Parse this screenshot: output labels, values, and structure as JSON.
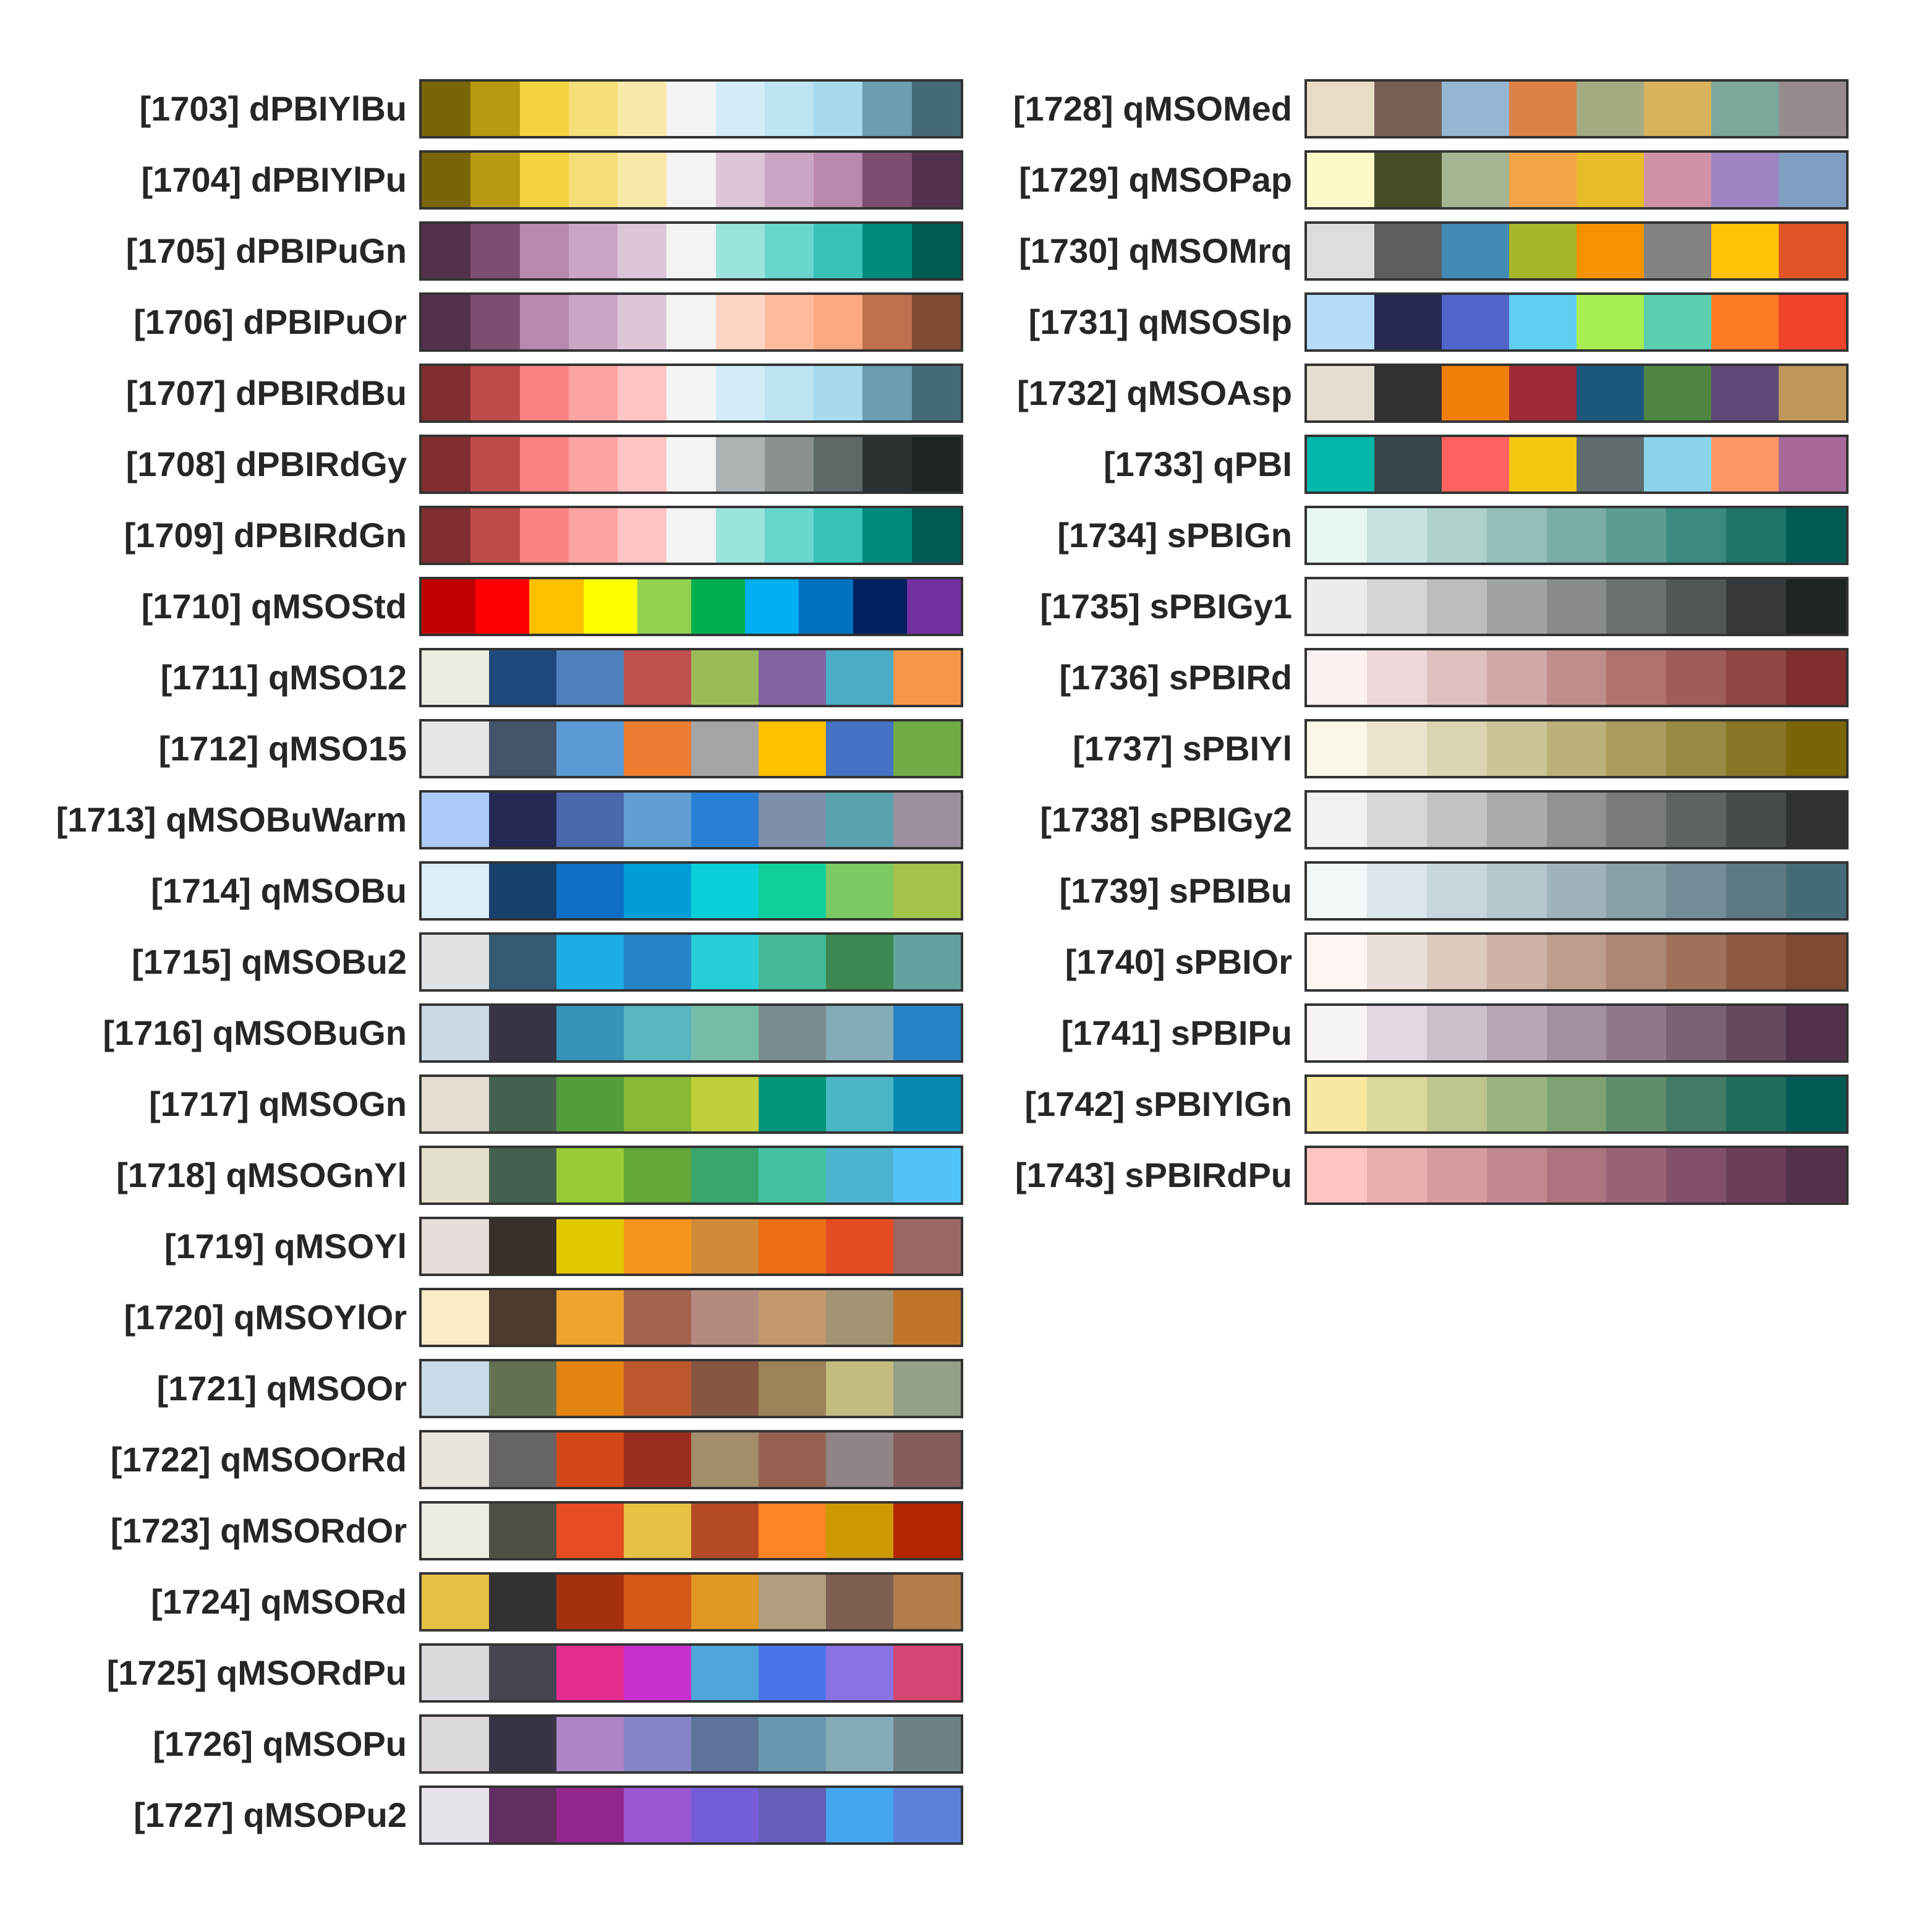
{
  "columns": [
    {
      "palettes": [
        {
          "label": "[1703] dPBIYlBu",
          "colors": [
            "#7a6508",
            "#b89a10",
            "#f3d340",
            "#f6df78",
            "#f9e9a8",
            "#f3f3f3",
            "#d2edf8",
            "#bde4f2",
            "#a6dbee",
            "#6a9eb0",
            "#456c76"
          ]
        },
        {
          "label": "[1704] dPBIYlPu",
          "colors": [
            "#7a6508",
            "#b89a10",
            "#f3d340",
            "#f6df78",
            "#f9e9a8",
            "#f3f3f3",
            "#dcc6d8",
            "#cba6c4",
            "#b888ad",
            "#7e4e70",
            "#53314a"
          ]
        },
        {
          "label": "[1705] dPBIPuGn",
          "colors": [
            "#53314a",
            "#7e4e70",
            "#b888ad",
            "#cba6c4",
            "#dcc6d8",
            "#f3f3f3",
            "#9be4dc",
            "#6ad5cd",
            "#38c3b8",
            "#018a7c",
            "#015b52"
          ]
        },
        {
          "label": "[1706] dPBIPuOr",
          "colors": [
            "#53314a",
            "#7e4e70",
            "#b888ad",
            "#cba6c4",
            "#dcc6d8",
            "#f3f3f3",
            "#fed5c4",
            "#fdbb9c",
            "#fca77f",
            "#bd714d",
            "#7e4a33"
          ]
        },
        {
          "label": "[1707] dPBIRdBu",
          "colors": [
            "#7f2d2f",
            "#c04b4b",
            "#fd8282",
            "#fea3a3",
            "#fec3c3",
            "#f3f3f3",
            "#d2edf8",
            "#bde4f2",
            "#a6dbee",
            "#6a9eb0",
            "#456c76"
          ]
        },
        {
          "label": "[1708] dPBIRdGy",
          "colors": [
            "#7f2d2f",
            "#c04b4b",
            "#fd8282",
            "#fea3a3",
            "#fec3c3",
            "#f3f3f3",
            "#aeb3b5",
            "#8b9191",
            "#5f6869",
            "#2c3233",
            "#1e2324"
          ]
        },
        {
          "label": "[1709] dPBIRdGn",
          "colors": [
            "#7f2d2f",
            "#c04b4b",
            "#fd8282",
            "#fea3a3",
            "#fec3c3",
            "#f3f3f3",
            "#9be4dc",
            "#6ad5cd",
            "#38c3b8",
            "#018a7c",
            "#015b52"
          ]
        },
        {
          "label": "[1710] qMSOStd",
          "colors": [
            "#c00000",
            "#ff0000",
            "#ffc000",
            "#ffff00",
            "#92d050",
            "#00b050",
            "#00b0f0",
            "#0070c0",
            "#002060",
            "#7030a0"
          ]
        },
        {
          "label": "[1711] qMSO12",
          "colors": [
            "#eeece1",
            "#1f497d",
            "#4f81bd",
            "#c0504d",
            "#9bbb59",
            "#8064a2",
            "#4bacc6",
            "#f79646"
          ]
        },
        {
          "label": "[1712] qMSO15",
          "colors": [
            "#e7e6e6",
            "#44546a",
            "#5b9bd5",
            "#ed7d31",
            "#a5a5a5",
            "#ffc000",
            "#4472c4",
            "#70ad47"
          ]
        },
        {
          "label": "[1713] qMSOBuWarm",
          "colors": [
            "#accbf9",
            "#242852",
            "#4a66ac",
            "#629dd1",
            "#297fd5",
            "#7f8fa9",
            "#5aa2ae",
            "#9d90a0"
          ]
        },
        {
          "label": "[1714] qMSOBu",
          "colors": [
            "#dbeff9",
            "#17406d",
            "#0f6fc6",
            "#009dd9",
            "#0bd0d9",
            "#10cf9b",
            "#7cca62",
            "#a5c249"
          ]
        },
        {
          "label": "[1715] qMSOBu2",
          "colors": [
            "#dfe3e5",
            "#335b74",
            "#1cade4",
            "#2683c6",
            "#27ced7",
            "#42ba97",
            "#3e8853",
            "#62a39f"
          ]
        },
        {
          "label": "[1716] qMSOBuGn",
          "colors": [
            "#ccd9e4",
            "#373545",
            "#3494ba",
            "#58b6c0",
            "#75bda7",
            "#7a8c8e",
            "#84acb6",
            "#2683c6"
          ]
        },
        {
          "label": "[1717] qMSOGn",
          "colors": [
            "#e3ded1",
            "#455f51",
            "#549e39",
            "#8ab833",
            "#c0cf3a",
            "#029676",
            "#4ab5c4",
            "#0989b1"
          ]
        },
        {
          "label": "[1718] qMSOGnYl",
          "colors": [
            "#e3e0cc",
            "#455f51",
            "#99cb38",
            "#63a537",
            "#37a76f",
            "#44c1a3",
            "#4eb3cf",
            "#51c3f9"
          ]
        },
        {
          "label": "[1719] qMSOYl",
          "colors": [
            "#e5ddd9",
            "#39302a",
            "#e1c902",
            "#f7941d",
            "#d08a39",
            "#ec6f17",
            "#e44d22",
            "#9b6765"
          ]
        },
        {
          "label": "[1720] qMSOYlOr",
          "colors": [
            "#fcedc9",
            "#4e3b30",
            "#f0a22e",
            "#a5644e",
            "#b58b80",
            "#c3986d",
            "#a19574",
            "#c17529"
          ]
        },
        {
          "label": "[1721] qMSOOr",
          "colors": [
            "#c9dce8",
            "#637052",
            "#e48312",
            "#bd582c",
            "#865640",
            "#9b8357",
            "#c2bc80",
            "#94a088"
          ]
        },
        {
          "label": "[1722] qMSOOrRd",
          "colors": [
            "#e9e5dc",
            "#696464",
            "#d34817",
            "#9b2d1f",
            "#a28e6a",
            "#956251",
            "#918485",
            "#855d5d"
          ]
        },
        {
          "label": "[1723] qMSORdOr",
          "colors": [
            "#eeede4",
            "#4f4f45",
            "#e84c22",
            "#e5c243",
            "#b64926",
            "#ff8427",
            "#cc9900",
            "#b22600"
          ]
        },
        {
          "label": "[1724] qMSORd",
          "colors": [
            "#e4c142",
            "#323232",
            "#a5300f",
            "#d55816",
            "#e19825",
            "#b19c7d",
            "#7f5f52",
            "#b27d49"
          ]
        },
        {
          "label": "[1725] qMSORdPu",
          "colors": [
            "#d9dadd",
            "#454551",
            "#e32d91",
            "#c830cc",
            "#4ea6dc",
            "#4775e7",
            "#8971e1",
            "#d54773"
          ]
        },
        {
          "label": "[1726] qMSOPu",
          "colors": [
            "#dcd8dc",
            "#373545",
            "#ad84c6",
            "#8784c7",
            "#5d739a",
            "#6997af",
            "#84acb6",
            "#6f8183"
          ]
        },
        {
          "label": "[1727] qMSOPu2",
          "colors": [
            "#e8e3ea",
            "#632e62",
            "#92278f",
            "#9b57d3",
            "#755dd9",
            "#665eb8",
            "#45a5ed",
            "#5982db"
          ]
        }
      ]
    },
    {
      "palettes": [
        {
          "label": "[1728] qMSOMed",
          "colors": [
            "#e8ddc4",
            "#775f55",
            "#94b6d2",
            "#dd8047",
            "#a5ab81",
            "#d8b25c",
            "#7ba79d",
            "#968c8c"
          ]
        },
        {
          "label": "[1729] qMSOPap",
          "colors": [
            "#fef9c8",
            "#444d26",
            "#a5b592",
            "#f3a447",
            "#e7bc29",
            "#d092a7",
            "#9c85c0",
            "#809ec2"
          ]
        },
        {
          "label": "[1730] qMSOMrq",
          "colors": [
            "#dddddd",
            "#5e5e5e",
            "#418ab3",
            "#a6b727",
            "#f69200",
            "#838383",
            "#fec306",
            "#df5327"
          ]
        },
        {
          "label": "[1731] qMSOSlp",
          "colors": [
            "#b5dbfb",
            "#242852",
            "#5165c9",
            "#60cdf2",
            "#a7ee52",
            "#5ccfb3",
            "#fd7a25",
            "#ef432c"
          ]
        },
        {
          "label": "[1732] qMSOAsp",
          "colors": [
            "#e3ded1",
            "#323232",
            "#f07f09",
            "#9f2936",
            "#1b587c",
            "#4e8542",
            "#604878",
            "#c19859"
          ]
        },
        {
          "label": "[1733] qPBI",
          "colors": [
            "#01b8aa",
            "#374649",
            "#fd625e",
            "#f2c80f",
            "#5f6b6d",
            "#8ad4eb",
            "#fe9666",
            "#a66999"
          ]
        },
        {
          "label": "[1734] sPBIGn",
          "colors": [
            "#e8f6f4",
            "#c9e4e0",
            "#aed1cc",
            "#94beb7",
            "#79aca4",
            "#5d9c92",
            "#3b8a7f",
            "#1f7367",
            "#015b52"
          ]
        },
        {
          "label": "[1735] sPBIGy1",
          "colors": [
            "#ebeced",
            "#d3d5d6",
            "#babcbd",
            "#a0a4a5",
            "#878b8c",
            "#6b7071",
            "#515657",
            "#35393b",
            "#1e2324"
          ]
        },
        {
          "label": "[1736] sPBIRd",
          "colors": [
            "#fcf1ef",
            "#edd9d9",
            "#dfc0c0",
            "#d0a8a7",
            "#c18d8c",
            "#b1716f",
            "#a05c5b",
            "#904644",
            "#7f2d2f"
          ]
        },
        {
          "label": "[1737] sPBIYl",
          "colors": [
            "#fbf8ea",
            "#ebe5cf",
            "#dbd4b0",
            "#cbc497",
            "#bbb17a",
            "#aa9c5e",
            "#998942",
            "#887626",
            "#7a6508"
          ]
        },
        {
          "label": "[1738] sPBIGy2",
          "colors": [
            "#f0f1f2",
            "#d7d8d9",
            "#c1c3c4",
            "#a8acac",
            "#8f9393",
            "#777b7c",
            "#5e6364",
            "#464b4c",
            "#2e3233"
          ]
        },
        {
          "label": "[1739] sPBIBu",
          "colors": [
            "#f3f8fa",
            "#dde6ea",
            "#c8d6dc",
            "#b5c6cd",
            "#9fb3ba",
            "#8aa0a8",
            "#738c96",
            "#5d7984",
            "#456c76"
          ]
        },
        {
          "label": "[1740] sPBIOr",
          "colors": [
            "#fdf6f3",
            "#ebe0d9",
            "#dccabf",
            "#cdb2a5",
            "#be9d8c",
            "#ae8674",
            "#a1705b",
            "#8f5a43",
            "#7e4a33"
          ]
        },
        {
          "label": "[1741] sPBIPu",
          "colors": [
            "#f6f2f5",
            "#e3d8e1",
            "#cdc0cb",
            "#b8a8b5",
            "#a3909f",
            "#8f7989",
            "#7a6274",
            "#654a5f",
            "#53314a"
          ]
        },
        {
          "label": "[1742] sPBIYlGn",
          "colors": [
            "#f9e8a0",
            "#dbd89b",
            "#bec68d",
            "#9cb580",
            "#7ea273",
            "#5f8e6d",
            "#427c66",
            "#216d5d",
            "#015b52"
          ]
        },
        {
          "label": "[1743] sPBIRdPu",
          "colors": [
            "#fec3c3",
            "#e9aeb0",
            "#d59b9f",
            "#c0878f",
            "#ab7380",
            "#976274",
            "#825068",
            "#6b3e5a",
            "#53314a"
          ]
        }
      ]
    }
  ]
}
